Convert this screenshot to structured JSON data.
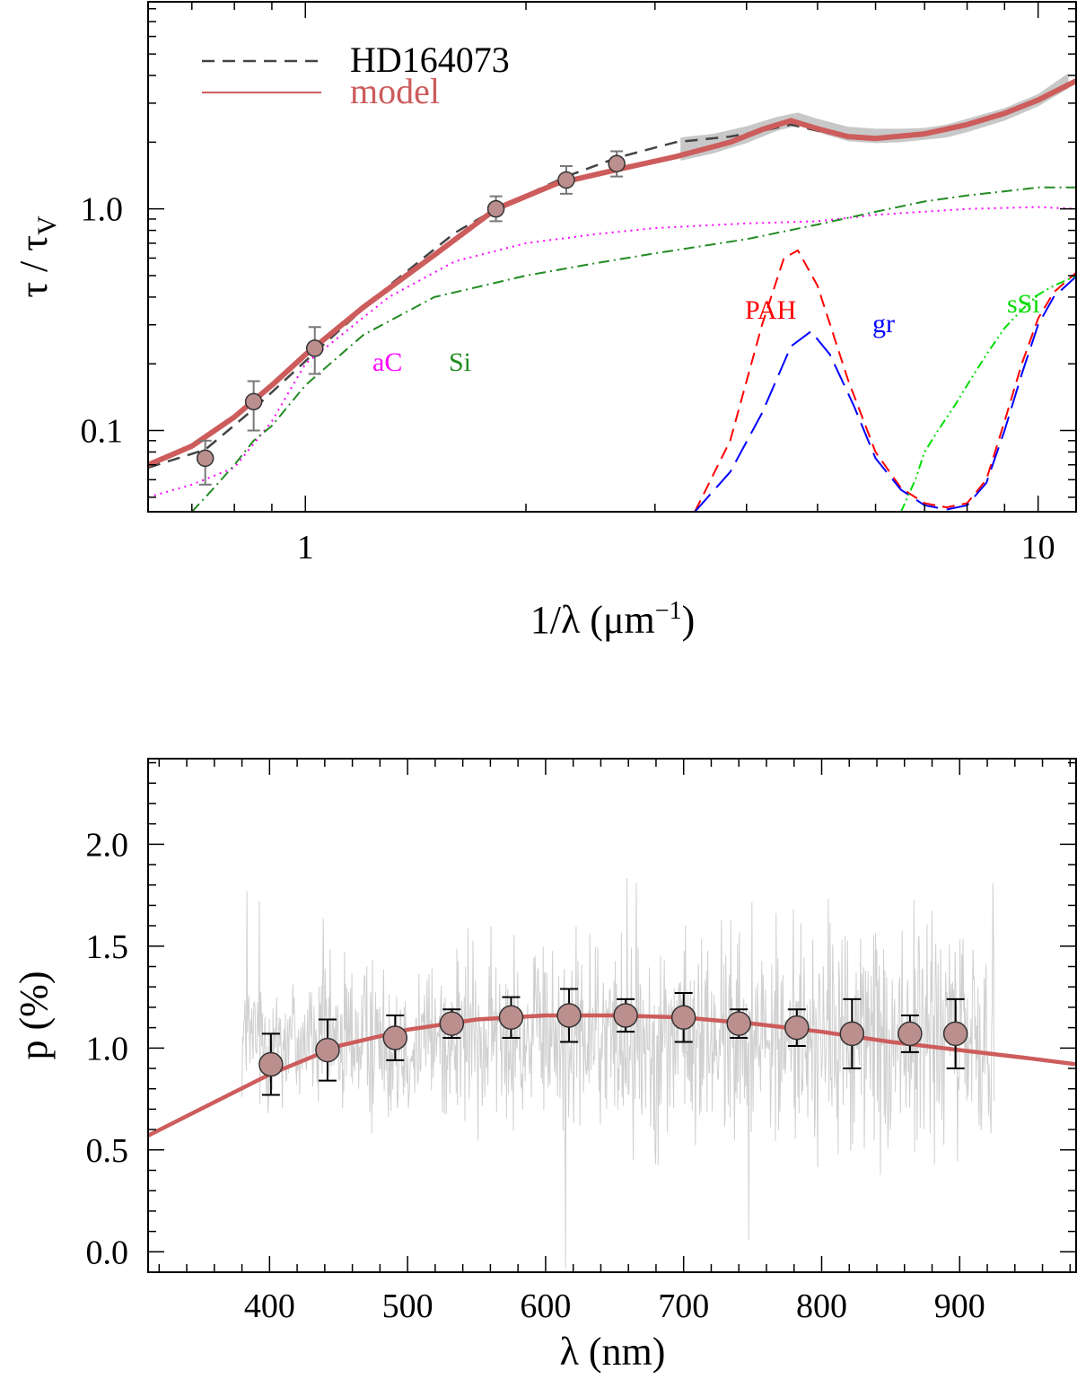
{
  "chart_data": [
    {
      "type": "line",
      "xscale": "log",
      "yscale": "log",
      "xlabel": "1/λ (μm",
      "xlabel_sup": "−1",
      "xlabel_close": ")",
      "ylabel": "τ / τ",
      "ylabel_sub": "V",
      "xlim": [
        0.61,
        11.3
      ],
      "ylim": [
        0.043,
        8.6
      ],
      "xticks": [
        {
          "value": 1,
          "label": "1"
        },
        {
          "value": 10,
          "label": "10"
        }
      ],
      "yticks": [
        {
          "value": 0.1,
          "label": "0.1"
        },
        {
          "value": 1.0,
          "label": "1.0"
        }
      ],
      "legend": [
        {
          "label": "HD164073",
          "color": "#444444",
          "style": "dashed"
        },
        {
          "label": "model",
          "color": "#cd5c5c",
          "style": "solid"
        }
      ],
      "component_labels": [
        {
          "text": "aC",
          "color": "#ff00ff"
        },
        {
          "text": "Si",
          "color": "#228b22"
        },
        {
          "text": "PAH",
          "color": "#ff0000"
        },
        {
          "text": "gr",
          "color": "#0000ff"
        },
        {
          "text": "sSi",
          "color": "#00dd00"
        }
      ],
      "observed_points": {
        "x": [
          0.73,
          0.85,
          1.03,
          1.82,
          2.27,
          2.66
        ],
        "y": [
          0.075,
          0.135,
          0.235,
          1.0,
          1.35,
          1.6
        ],
        "err_low": [
          0.057,
          0.1,
          0.18,
          0.88,
          1.17,
          1.4
        ],
        "err_high": [
          0.09,
          0.167,
          0.293,
          1.14,
          1.56,
          1.82
        ]
      },
      "series": [
        {
          "name": "model",
          "color": "#cd5c5c",
          "x": [
            0.61,
            0.7,
            0.8,
            0.9,
            1.0,
            1.2,
            1.5,
            1.82,
            2.2,
            2.7,
            3.2,
            3.8,
            4.2,
            4.6,
            5.0,
            5.5,
            6.0,
            7.0,
            8.0,
            9.0,
            10.0,
            11.3
          ],
          "y": [
            0.07,
            0.085,
            0.115,
            0.16,
            0.22,
            0.36,
            0.62,
            1.0,
            1.3,
            1.52,
            1.72,
            2.0,
            2.28,
            2.5,
            2.3,
            2.12,
            2.08,
            2.18,
            2.4,
            2.7,
            3.1,
            3.8
          ]
        },
        {
          "name": "HD164073",
          "color": "#444444",
          "x": [
            0.61,
            0.73,
            0.85,
            1.03,
            1.3,
            1.6,
            1.82,
            2.27,
            2.66,
            3.2,
            3.8,
            4.2,
            4.6,
            5.0,
            5.5,
            6.0,
            7.0,
            8.0,
            9.0,
            10.0,
            11.0
          ],
          "y": [
            0.068,
            0.082,
            0.125,
            0.225,
            0.45,
            0.78,
            1.0,
            1.4,
            1.7,
            2.0,
            2.12,
            2.25,
            2.4,
            2.25,
            2.1,
            2.05,
            2.15,
            2.38,
            2.7,
            3.1,
            3.7
          ]
        },
        {
          "name": "aC",
          "color": "#ff00ff",
          "x": [
            0.61,
            0.7,
            0.8,
            0.9,
            1.0,
            1.3,
            1.6,
            2.0,
            2.5,
            3.0,
            4.0,
            5.0,
            6.0,
            8.0,
            10.0,
            11.3
          ],
          "y": [
            0.05,
            0.057,
            0.068,
            0.11,
            0.2,
            0.4,
            0.58,
            0.7,
            0.77,
            0.82,
            0.86,
            0.88,
            0.94,
            1.0,
            1.02,
            1.0
          ]
        },
        {
          "name": "Si",
          "color": "#228b22",
          "x": [
            0.7,
            0.75,
            0.8,
            0.85,
            0.9,
            1.0,
            1.2,
            1.5,
            2.0,
            2.5,
            3.0,
            4.0,
            5.0,
            6.0,
            7.0,
            8.0,
            9.0,
            10.0,
            11.3
          ],
          "y": [
            0.043,
            0.055,
            0.07,
            0.09,
            0.105,
            0.16,
            0.27,
            0.4,
            0.5,
            0.57,
            0.63,
            0.73,
            0.85,
            0.97,
            1.08,
            1.15,
            1.2,
            1.25,
            1.25
          ]
        },
        {
          "name": "PAH",
          "color": "#ff0000",
          "x": [
            3.4,
            3.8,
            4.2,
            4.5,
            4.7,
            5.0,
            5.5,
            6.0,
            6.5,
            7.0,
            7.5,
            8.0,
            8.5,
            9.0,
            9.5,
            10.0,
            10.5,
            11.3
          ],
          "y": [
            0.043,
            0.09,
            0.3,
            0.6,
            0.65,
            0.45,
            0.17,
            0.08,
            0.055,
            0.047,
            0.045,
            0.047,
            0.06,
            0.11,
            0.2,
            0.32,
            0.42,
            0.52
          ]
        },
        {
          "name": "gr",
          "color": "#0000ff",
          "x": [
            3.4,
            3.8,
            4.2,
            4.6,
            4.9,
            5.2,
            5.6,
            6.0,
            6.5,
            7.0,
            7.5,
            8.0,
            8.5,
            9.0,
            9.5,
            10.0,
            10.5,
            11.3
          ],
          "y": [
            0.043,
            0.065,
            0.12,
            0.24,
            0.28,
            0.22,
            0.13,
            0.075,
            0.054,
            0.046,
            0.044,
            0.046,
            0.058,
            0.1,
            0.18,
            0.3,
            0.4,
            0.5
          ]
        },
        {
          "name": "sSi",
          "color": "#00dd00",
          "x": [
            6.5,
            6.8,
            7.0,
            7.3,
            7.7,
            8.0,
            8.5,
            9.0,
            9.5,
            10.0,
            10.5,
            11.3
          ],
          "y": [
            0.043,
            0.06,
            0.08,
            0.1,
            0.13,
            0.16,
            0.22,
            0.29,
            0.35,
            0.41,
            0.45,
            0.5
          ]
        }
      ],
      "uncertainty_band": {
        "x": [
          3.25,
          3.6,
          4.0,
          4.4,
          4.7,
          5.0,
          5.5,
          6.0,
          6.5,
          7.0,
          7.5,
          8.0,
          9.0,
          10.0,
          11.0
        ],
        "low": [
          1.65,
          1.78,
          1.98,
          2.25,
          2.38,
          2.22,
          2.02,
          1.98,
          2.0,
          2.05,
          2.1,
          2.22,
          2.5,
          2.9,
          3.5
        ],
        "high": [
          2.1,
          2.18,
          2.36,
          2.6,
          2.72,
          2.55,
          2.35,
          2.3,
          2.3,
          2.32,
          2.4,
          2.55,
          2.85,
          3.3,
          4.1
        ]
      }
    },
    {
      "type": "line",
      "xlabel": "λ (nm)",
      "ylabel": "p (%)",
      "xlim": [
        312,
        985
      ],
      "ylim": [
        -0.1,
        2.42
      ],
      "xticks": [
        {
          "value": 400,
          "label": "400"
        },
        {
          "value": 500,
          "label": "500"
        },
        {
          "value": 600,
          "label": "600"
        },
        {
          "value": 700,
          "label": "700"
        },
        {
          "value": 800,
          "label": "800"
        },
        {
          "value": 900,
          "label": "900"
        }
      ],
      "yticks": [
        {
          "value": 0.0,
          "label": "0.0"
        },
        {
          "value": 0.5,
          "label": "0.5"
        },
        {
          "value": 1.0,
          "label": "1.0"
        },
        {
          "value": 1.5,
          "label": "1.5"
        },
        {
          "value": 2.0,
          "label": "2.0"
        }
      ],
      "noisy_spectrum": {
        "name": "observed spectrum",
        "color": "#d0d0d0",
        "x_start": 380,
        "x_end": 925,
        "mean": 1.05,
        "scatter": 0.45
      },
      "series": [
        {
          "name": "model",
          "color": "#cd5c5c",
          "x": [
            312,
            350,
            400,
            450,
            500,
            550,
            600,
            650,
            700,
            750,
            800,
            850,
            900,
            950,
            985
          ],
          "y": [
            0.57,
            0.7,
            0.87,
            1.01,
            1.09,
            1.14,
            1.16,
            1.16,
            1.15,
            1.12,
            1.08,
            1.03,
            0.99,
            0.95,
            0.92
          ]
        }
      ],
      "binned_points": {
        "x": [
          401,
          442,
          491,
          532,
          575,
          617,
          658,
          700,
          740,
          782,
          822,
          864,
          897
        ],
        "y": [
          0.92,
          0.99,
          1.05,
          1.12,
          1.15,
          1.16,
          1.16,
          1.15,
          1.12,
          1.1,
          1.07,
          1.07,
          1.07
        ],
        "err": [
          0.15,
          0.15,
          0.11,
          0.07,
          0.1,
          0.13,
          0.08,
          0.12,
          0.07,
          0.09,
          0.17,
          0.09,
          0.17
        ]
      }
    }
  ]
}
